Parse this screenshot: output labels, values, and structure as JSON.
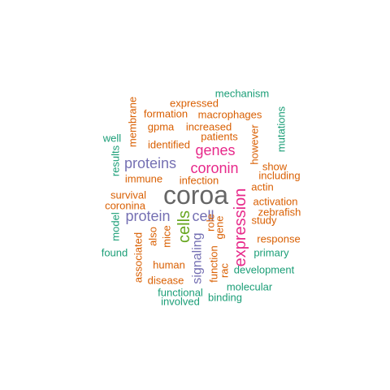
{
  "chart_data": {
    "type": "wordcloud",
    "colors": {
      "teal": "#1b9e77",
      "orange": "#d95f02",
      "purple": "#7570b3",
      "magenta": "#e7298a",
      "green": "#66a61e",
      "gray": "#666666"
    },
    "words": [
      {
        "text": "coroa",
        "color": "gray",
        "rotated": false
      },
      {
        "text": "expression",
        "color": "magenta",
        "rotated": true
      },
      {
        "text": "cells",
        "color": "green",
        "rotated": true
      },
      {
        "text": "genes",
        "color": "magenta",
        "rotated": false
      },
      {
        "text": "coronin",
        "color": "magenta",
        "rotated": false
      },
      {
        "text": "proteins",
        "color": "purple",
        "rotated": false
      },
      {
        "text": "protein",
        "color": "purple",
        "rotated": false
      },
      {
        "text": "cell",
        "color": "purple",
        "rotated": false
      },
      {
        "text": "signaling",
        "color": "purple",
        "rotated": true
      },
      {
        "text": "mechanism",
        "color": "teal",
        "rotated": false
      },
      {
        "text": "expressed",
        "color": "orange",
        "rotated": false
      },
      {
        "text": "membrane",
        "color": "orange",
        "rotated": true
      },
      {
        "text": "formation",
        "color": "orange",
        "rotated": false
      },
      {
        "text": "macrophages",
        "color": "orange",
        "rotated": false
      },
      {
        "text": "mutations",
        "color": "teal",
        "rotated": true
      },
      {
        "text": "gpma",
        "color": "orange",
        "rotated": false
      },
      {
        "text": "increased",
        "color": "orange",
        "rotated": false
      },
      {
        "text": "however",
        "color": "orange",
        "rotated": true
      },
      {
        "text": "well",
        "color": "teal",
        "rotated": false
      },
      {
        "text": "patients",
        "color": "orange",
        "rotated": false
      },
      {
        "text": "identified",
        "color": "orange",
        "rotated": false
      },
      {
        "text": "results",
        "color": "teal",
        "rotated": true
      },
      {
        "text": "show",
        "color": "orange",
        "rotated": false
      },
      {
        "text": "including",
        "color": "orange",
        "rotated": false
      },
      {
        "text": "immune",
        "color": "orange",
        "rotated": false
      },
      {
        "text": "infection",
        "color": "orange",
        "rotated": false
      },
      {
        "text": "actin",
        "color": "orange",
        "rotated": false
      },
      {
        "text": "survival",
        "color": "orange",
        "rotated": false
      },
      {
        "text": "activation",
        "color": "orange",
        "rotated": false
      },
      {
        "text": "coronina",
        "color": "orange",
        "rotated": false
      },
      {
        "text": "zebrafish",
        "color": "orange",
        "rotated": false
      },
      {
        "text": "study",
        "color": "orange",
        "rotated": false
      },
      {
        "text": "model",
        "color": "teal",
        "rotated": true
      },
      {
        "text": "role",
        "color": "orange",
        "rotated": true
      },
      {
        "text": "gene",
        "color": "orange",
        "rotated": true
      },
      {
        "text": "also",
        "color": "orange",
        "rotated": true
      },
      {
        "text": "mice",
        "color": "orange",
        "rotated": true
      },
      {
        "text": "response",
        "color": "orange",
        "rotated": false
      },
      {
        "text": "found",
        "color": "teal",
        "rotated": false
      },
      {
        "text": "primary",
        "color": "teal",
        "rotated": false
      },
      {
        "text": "associated",
        "color": "orange",
        "rotated": true
      },
      {
        "text": "human",
        "color": "orange",
        "rotated": false
      },
      {
        "text": "function",
        "color": "orange",
        "rotated": true
      },
      {
        "text": "rac",
        "color": "orange",
        "rotated": true
      },
      {
        "text": "development",
        "color": "teal",
        "rotated": false
      },
      {
        "text": "disease",
        "color": "orange",
        "rotated": false
      },
      {
        "text": "molecular",
        "color": "teal",
        "rotated": false
      },
      {
        "text": "functional",
        "color": "teal",
        "rotated": false
      },
      {
        "text": "binding",
        "color": "teal",
        "rotated": false
      },
      {
        "text": "involved",
        "color": "teal",
        "rotated": false
      }
    ]
  }
}
